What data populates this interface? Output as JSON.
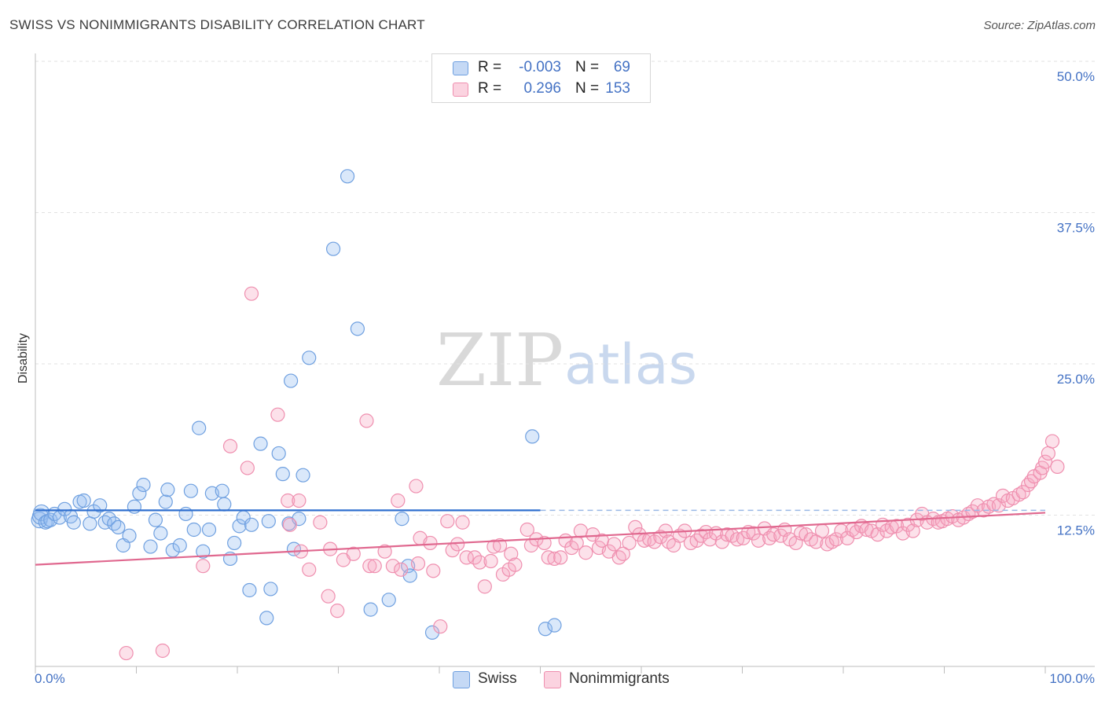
{
  "header": {
    "title": "SWISS VS NONIMMIGRANTS DISABILITY CORRELATION CHART",
    "source": "Source: ZipAtlas.com"
  },
  "legend": {
    "rows": [
      {
        "r_label": "R =",
        "r_value": "-0.003",
        "n_label": "N =",
        "n_value": "69",
        "color": "#6fa0e0"
      },
      {
        "r_label": "R =",
        "r_value": "0.296",
        "n_label": "N =",
        "n_value": "153",
        "color": "#ef8faf"
      }
    ]
  },
  "bottom_legend": {
    "items": [
      {
        "label": "Swiss",
        "color": "#6fa0e0"
      },
      {
        "label": "Nonimmigrants",
        "color": "#ef8faf"
      }
    ]
  },
  "watermark": {
    "zip": "ZIP",
    "atlas": "atlas"
  },
  "chart_data": {
    "type": "scatter",
    "title": "SWISS VS NONIMMIGRANTS DISABILITY CORRELATION CHART",
    "xlabel": "",
    "ylabel": "Disability",
    "xlim": [
      0,
      100
    ],
    "ylim": [
      0,
      50
    ],
    "x_tick_labels": [
      "0.0%",
      "100.0%"
    ],
    "y_ticks": [
      12.5,
      25.0,
      37.5,
      50.0
    ],
    "y_tick_labels": [
      "12.5%",
      "25.0%",
      "37.5%",
      "50.0%"
    ],
    "grid": "horizontal dashed",
    "legend_position": "top-center",
    "colors": {
      "swiss": "#6fa0e0",
      "nonimmigrants": "#ef8faf",
      "swiss_line": "#2f6fcf",
      "nonimmigrants_line": "#e0688f"
    },
    "series": [
      {
        "name": "Swiss",
        "R": -0.003,
        "N": 69,
        "trend": {
          "x": [
            0,
            50
          ],
          "y": [
            12.9,
            12.9
          ],
          "dashed_extension_to_x": 100
        },
        "points": [
          [
            0.4,
            12.1
          ],
          [
            0.5,
            12.4
          ],
          [
            0.6,
            12.7
          ],
          [
            1.0,
            11.9
          ],
          [
            1.2,
            12.0
          ],
          [
            1.5,
            12.1
          ],
          [
            1.9,
            12.6
          ],
          [
            2.4,
            12.3
          ],
          [
            2.9,
            13.0
          ],
          [
            3.5,
            12.4
          ],
          [
            3.8,
            11.9
          ],
          [
            4.4,
            13.6
          ],
          [
            4.8,
            13.7
          ],
          [
            5.4,
            11.8
          ],
          [
            5.8,
            12.8
          ],
          [
            6.4,
            13.3
          ],
          [
            6.9,
            11.9
          ],
          [
            7.3,
            12.2
          ],
          [
            7.8,
            11.8
          ],
          [
            8.2,
            11.5
          ],
          [
            8.7,
            10.0
          ],
          [
            9.3,
            10.8
          ],
          [
            9.8,
            13.2
          ],
          [
            10.3,
            14.3
          ],
          [
            10.7,
            15.0
          ],
          [
            11.4,
            9.9
          ],
          [
            11.9,
            12.1
          ],
          [
            12.4,
            11.0
          ],
          [
            12.9,
            13.6
          ],
          [
            13.1,
            14.6
          ],
          [
            13.6,
            9.6
          ],
          [
            14.3,
            10.0
          ],
          [
            14.9,
            12.6
          ],
          [
            15.4,
            14.5
          ],
          [
            15.7,
            11.3
          ],
          [
            16.2,
            19.7
          ],
          [
            16.6,
            9.5
          ],
          [
            17.2,
            11.3
          ],
          [
            17.5,
            14.3
          ],
          [
            18.5,
            14.5
          ],
          [
            18.7,
            13.4
          ],
          [
            19.3,
            8.9
          ],
          [
            19.7,
            10.2
          ],
          [
            20.2,
            11.6
          ],
          [
            20.6,
            12.3
          ],
          [
            21.2,
            6.3
          ],
          [
            21.4,
            11.7
          ],
          [
            22.3,
            18.4
          ],
          [
            22.9,
            4.0
          ],
          [
            23.1,
            12.0
          ],
          [
            23.3,
            6.4
          ],
          [
            24.1,
            17.6
          ],
          [
            24.5,
            15.9
          ],
          [
            25.1,
            11.8
          ],
          [
            25.3,
            23.6
          ],
          [
            25.6,
            9.7
          ],
          [
            26.1,
            12.2
          ],
          [
            26.5,
            15.8
          ],
          [
            27.1,
            25.5
          ],
          [
            29.5,
            34.5
          ],
          [
            30.9,
            40.5
          ],
          [
            31.9,
            27.9
          ],
          [
            33.2,
            4.7
          ],
          [
            35.0,
            5.5
          ],
          [
            36.3,
            12.2
          ],
          [
            36.9,
            8.3
          ],
          [
            37.1,
            7.5
          ],
          [
            39.3,
            2.8
          ],
          [
            50.5,
            3.1
          ],
          [
            51.4,
            3.4
          ],
          [
            49.2,
            19.0
          ]
        ]
      },
      {
        "name": "Nonimmigrants",
        "R": 0.296,
        "N": 153,
        "trend": {
          "x": [
            0,
            100
          ],
          "y": [
            8.4,
            12.7
          ]
        },
        "points": [
          [
            9.0,
            1.1
          ],
          [
            12.6,
            1.3
          ],
          [
            16.6,
            8.3
          ],
          [
            19.3,
            18.2
          ],
          [
            21.0,
            16.4
          ],
          [
            21.4,
            30.8
          ],
          [
            24.0,
            20.8
          ],
          [
            25.0,
            13.7
          ],
          [
            25.2,
            11.7
          ],
          [
            26.1,
            13.7
          ],
          [
            26.3,
            9.5
          ],
          [
            27.1,
            8.0
          ],
          [
            28.2,
            11.9
          ],
          [
            29.0,
            5.8
          ],
          [
            29.2,
            9.7
          ],
          [
            29.9,
            4.6
          ],
          [
            30.5,
            8.8
          ],
          [
            31.5,
            9.3
          ],
          [
            32.8,
            20.3
          ],
          [
            33.1,
            8.3
          ],
          [
            33.6,
            8.3
          ],
          [
            34.6,
            9.5
          ],
          [
            35.4,
            8.3
          ],
          [
            35.9,
            13.7
          ],
          [
            36.2,
            8.0
          ],
          [
            37.7,
            14.9
          ],
          [
            37.9,
            8.5
          ],
          [
            38.1,
            10.6
          ],
          [
            39.1,
            10.2
          ],
          [
            39.4,
            7.9
          ],
          [
            40.1,
            3.3
          ],
          [
            40.8,
            12.0
          ],
          [
            41.3,
            9.6
          ],
          [
            41.8,
            10.1
          ],
          [
            42.3,
            11.9
          ],
          [
            42.7,
            9.0
          ],
          [
            43.5,
            9.0
          ],
          [
            44.0,
            8.6
          ],
          [
            44.5,
            6.6
          ],
          [
            45.1,
            8.7
          ],
          [
            45.4,
            9.9
          ],
          [
            46.0,
            10.0
          ],
          [
            46.3,
            7.6
          ],
          [
            46.9,
            8.0
          ],
          [
            47.1,
            9.3
          ],
          [
            47.5,
            8.4
          ],
          [
            48.7,
            11.3
          ],
          [
            49.1,
            10.0
          ],
          [
            49.6,
            10.5
          ],
          [
            50.4,
            10.2
          ],
          [
            50.8,
            9.0
          ],
          [
            51.4,
            8.9
          ],
          [
            52.0,
            9.0
          ],
          [
            52.5,
            10.4
          ],
          [
            53.1,
            9.8
          ],
          [
            53.6,
            10.2
          ],
          [
            54.0,
            11.2
          ],
          [
            54.5,
            9.4
          ],
          [
            55.2,
            10.9
          ],
          [
            55.8,
            9.8
          ],
          [
            56.1,
            10.4
          ],
          [
            56.8,
            9.5
          ],
          [
            57.3,
            10.1
          ],
          [
            57.8,
            9.0
          ],
          [
            58.2,
            9.3
          ],
          [
            58.8,
            10.2
          ],
          [
            59.4,
            11.5
          ],
          [
            59.8,
            10.9
          ],
          [
            60.3,
            10.4
          ],
          [
            60.8,
            10.5
          ],
          [
            61.3,
            10.3
          ],
          [
            61.9,
            10.7
          ],
          [
            62.4,
            11.2
          ],
          [
            62.7,
            10.3
          ],
          [
            63.2,
            10.0
          ],
          [
            63.8,
            10.8
          ],
          [
            64.3,
            11.2
          ],
          [
            64.9,
            10.2
          ],
          [
            65.5,
            10.4
          ],
          [
            65.9,
            10.8
          ],
          [
            66.4,
            11.1
          ],
          [
            66.8,
            10.5
          ],
          [
            67.4,
            11.0
          ],
          [
            68.0,
            10.3
          ],
          [
            68.5,
            10.9
          ],
          [
            69.0,
            10.8
          ],
          [
            69.5,
            10.5
          ],
          [
            70.1,
            10.6
          ],
          [
            70.6,
            11.1
          ],
          [
            71.1,
            11.0
          ],
          [
            71.6,
            10.4
          ],
          [
            72.2,
            11.4
          ],
          [
            72.7,
            10.6
          ],
          [
            73.1,
            10.9
          ],
          [
            73.8,
            10.8
          ],
          [
            74.2,
            11.3
          ],
          [
            74.7,
            10.5
          ],
          [
            75.3,
            10.2
          ],
          [
            75.8,
            11.0
          ],
          [
            76.3,
            10.9
          ],
          [
            76.8,
            10.5
          ],
          [
            77.3,
            10.3
          ],
          [
            77.9,
            11.2
          ],
          [
            78.4,
            10.1
          ],
          [
            78.9,
            10.3
          ],
          [
            79.3,
            10.5
          ],
          [
            79.8,
            11.2
          ],
          [
            80.4,
            10.6
          ],
          [
            80.9,
            11.3
          ],
          [
            81.3,
            11.1
          ],
          [
            81.8,
            11.6
          ],
          [
            82.3,
            11.3
          ],
          [
            82.8,
            11.2
          ],
          [
            83.4,
            10.9
          ],
          [
            83.9,
            11.7
          ],
          [
            84.3,
            11.2
          ],
          [
            84.8,
            11.5
          ],
          [
            85.3,
            11.6
          ],
          [
            85.9,
            11.0
          ],
          [
            86.4,
            11.7
          ],
          [
            86.9,
            11.2
          ],
          [
            87.3,
            12.1
          ],
          [
            87.8,
            12.6
          ],
          [
            88.3,
            11.9
          ],
          [
            88.9,
            12.2
          ],
          [
            89.4,
            11.9
          ],
          [
            89.8,
            12.0
          ],
          [
            90.3,
            12.2
          ],
          [
            90.8,
            12.4
          ],
          [
            91.4,
            12.1
          ],
          [
            91.9,
            12.3
          ],
          [
            92.4,
            12.6
          ],
          [
            92.8,
            12.8
          ],
          [
            93.3,
            13.3
          ],
          [
            93.9,
            12.9
          ],
          [
            94.4,
            13.2
          ],
          [
            94.9,
            13.4
          ],
          [
            95.4,
            13.3
          ],
          [
            95.8,
            14.1
          ],
          [
            96.3,
            13.7
          ],
          [
            96.8,
            13.9
          ],
          [
            97.4,
            14.2
          ],
          [
            97.8,
            14.4
          ],
          [
            98.3,
            15.0
          ],
          [
            98.6,
            15.3
          ],
          [
            98.9,
            15.7
          ],
          [
            99.5,
            16.0
          ],
          [
            99.7,
            16.4
          ],
          [
            100.0,
            16.9
          ],
          [
            100.3,
            17.6
          ],
          [
            100.7,
            18.6
          ],
          [
            101.2,
            16.5
          ]
        ]
      }
    ]
  }
}
